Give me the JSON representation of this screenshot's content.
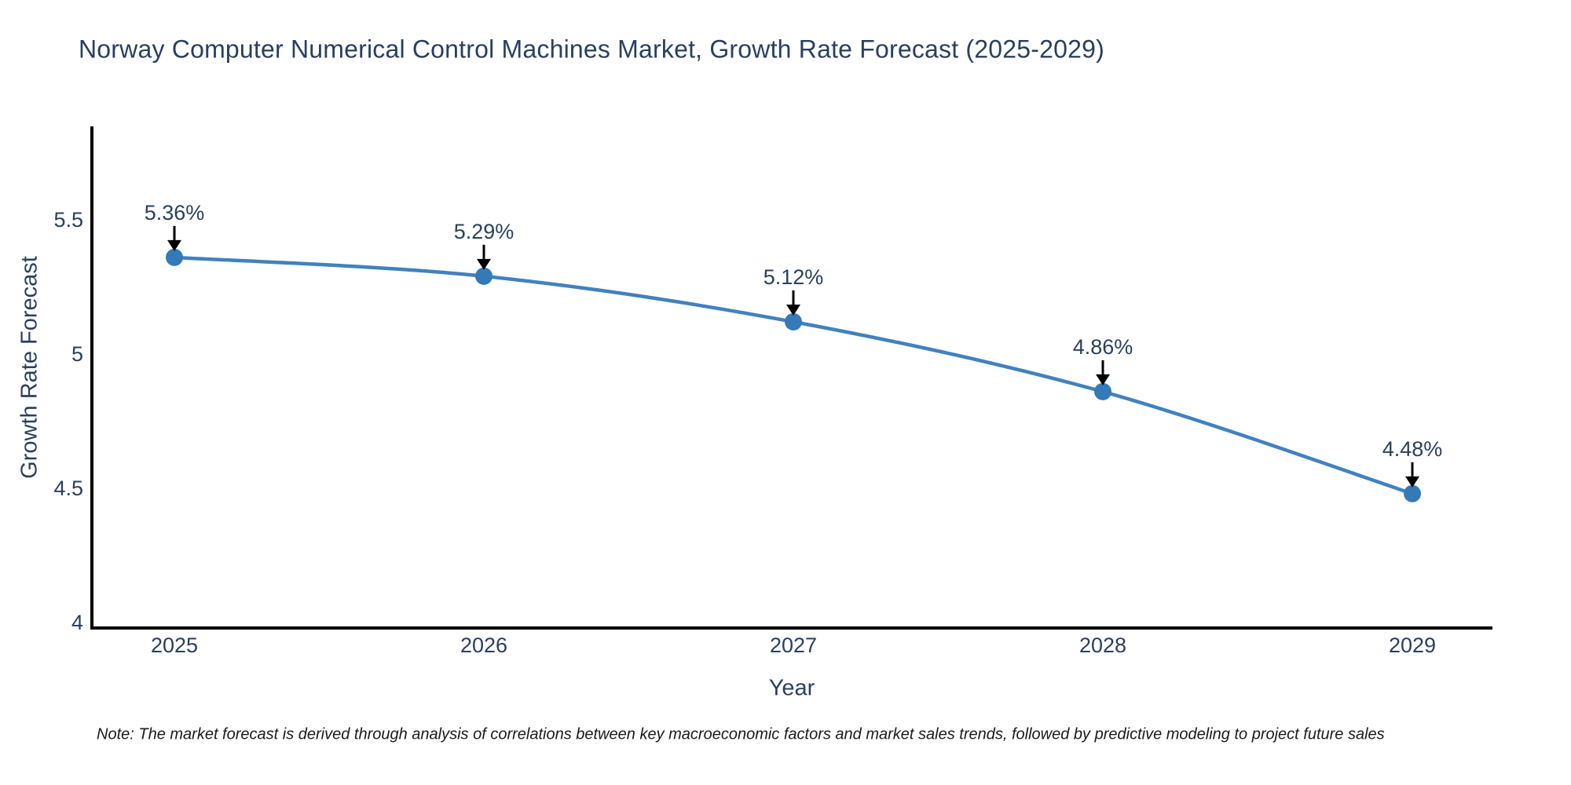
{
  "page": {
    "background": "#ffffff"
  },
  "chart_data": {
    "type": "line",
    "title": "Norway Computer Numerical Control Machines Market, Growth Rate Forecast (2025-2029)",
    "xlabel": "Year",
    "ylabel": "Growth Rate Forecast",
    "categories": [
      "2025",
      "2026",
      "2027",
      "2028",
      "2029"
    ],
    "values": [
      5.36,
      5.29,
      5.12,
      4.86,
      4.48
    ],
    "point_labels": [
      "5.36%",
      "5.29%",
      "5.12%",
      "4.86%",
      "4.48%"
    ],
    "y_ticks": [
      5.5,
      5,
      4.5,
      4
    ],
    "ylim": [
      3.98,
      5.85
    ],
    "grid": false,
    "legend": "none",
    "line_shape": "spline",
    "annotation_style": "label-with-down-arrow",
    "colors": {
      "line": "#4181bf",
      "marker": "#337ab7",
      "axis": "#000000",
      "text": "#2a3f5f",
      "arrow": "#000000"
    },
    "note": "Note: The market forecast is derived through analysis of correlations between key macroeconomic factors and market sales trends, followed by predictive modeling to project future sales"
  }
}
